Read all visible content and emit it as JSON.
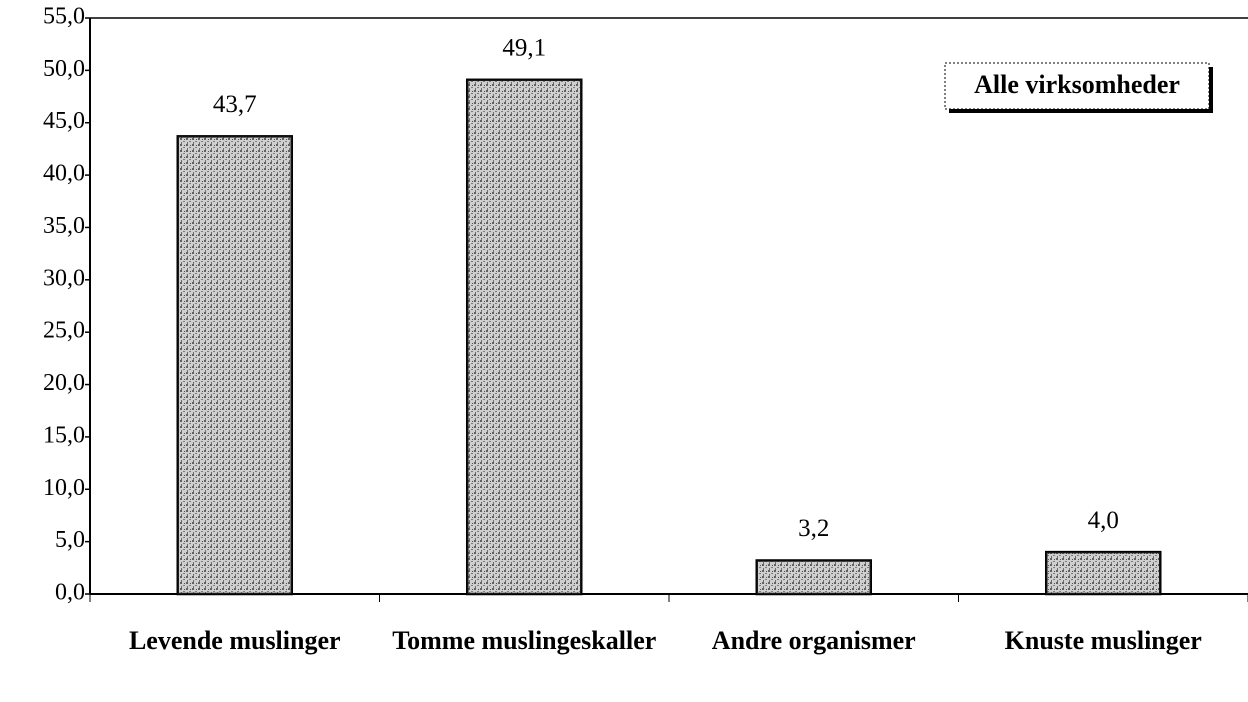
{
  "chart_data": {
    "type": "bar",
    "categories": [
      "Levende muslinger",
      "Tomme muslingeskaller",
      "Andre organismer",
      "Knuste muslinger"
    ],
    "series": [
      {
        "name": "Alle virksomheder",
        "color": "#a9a9a9",
        "values": [
          43.7,
          49.1,
          3.2,
          4.0
        ],
        "value_labels": [
          "43,7",
          "49,1",
          "3,2",
          "4,0"
        ]
      }
    ],
    "ylim": [
      0,
      55
    ],
    "yticks": [
      {
        "value": 0,
        "label": "0,0"
      },
      {
        "value": 5,
        "label": "5,0"
      },
      {
        "value": 10,
        "label": "10,0"
      },
      {
        "value": 15,
        "label": "15,0"
      },
      {
        "value": 20,
        "label": "20,0"
      },
      {
        "value": 25,
        "label": "25,0"
      },
      {
        "value": 30,
        "label": "30,0"
      },
      {
        "value": 35,
        "label": "35,0"
      },
      {
        "value": 40,
        "label": "40,0"
      },
      {
        "value": 45,
        "label": "45,0"
      },
      {
        "value": 50,
        "label": "50,0"
      },
      {
        "value": 55,
        "label": "55,0"
      }
    ],
    "legend": "top-right"
  }
}
